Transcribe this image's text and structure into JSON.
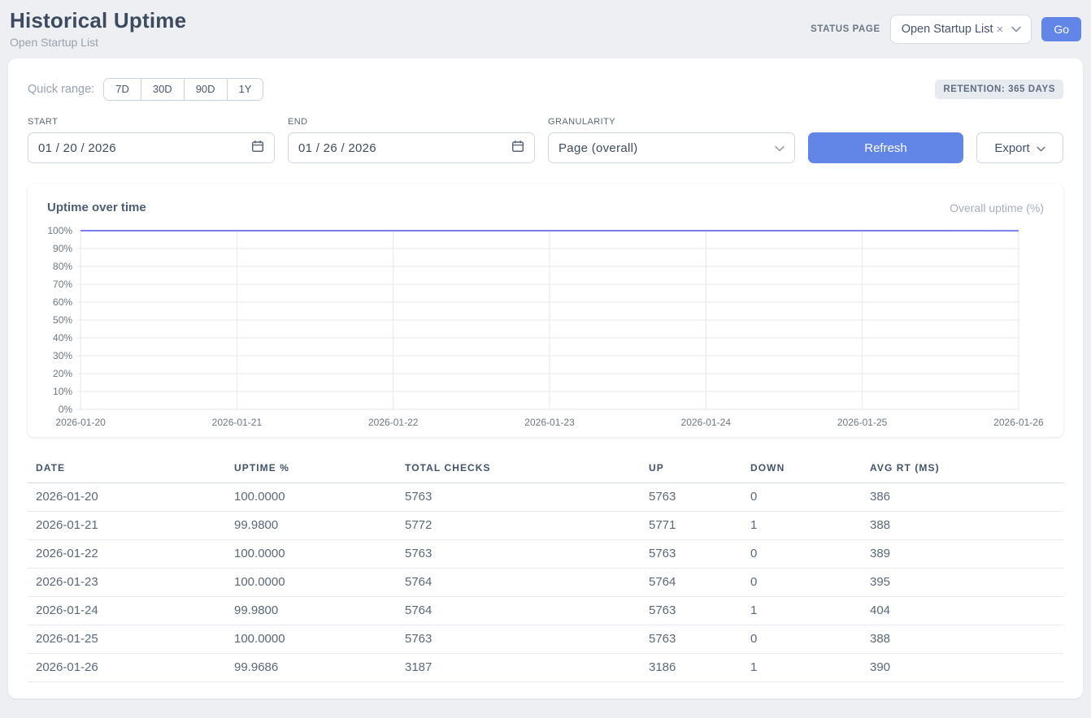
{
  "header": {
    "title": "Historical Uptime",
    "subtitle": "Open Startup List",
    "status_page_label": "STATUS PAGE",
    "status_page_value": "Open Startup List",
    "clear_icon": "×",
    "go_label": "Go"
  },
  "filters": {
    "quick_range_label": "Quick range:",
    "quick_ranges": [
      "7D",
      "30D",
      "90D",
      "1Y"
    ],
    "retention_badge": "RETENTION: 365 DAYS",
    "start_label": "START",
    "start_value": "01 / 20 / 2026",
    "end_label": "END",
    "end_value": "01 / 26 / 2026",
    "granularity_label": "GRANULARITY",
    "granularity_value": "Page (overall)",
    "refresh_label": "Refresh",
    "export_label": "Export"
  },
  "chart_data": {
    "type": "line",
    "title": "Uptime over time",
    "legend_position": "top-right",
    "x": [
      "2026-01-20",
      "2026-01-21",
      "2026-01-22",
      "2026-01-23",
      "2026-01-24",
      "2026-01-25",
      "2026-01-26"
    ],
    "series": [
      {
        "name": "Overall uptime (%)",
        "values": [
          100.0,
          99.98,
          100.0,
          100.0,
          99.98,
          100.0,
          99.9686
        ]
      }
    ],
    "ylim": [
      0,
      100
    ],
    "yticks": [
      0,
      10,
      20,
      30,
      40,
      50,
      60,
      70,
      80,
      90,
      100
    ],
    "ytick_suffix": "%",
    "grid": true,
    "line_color": "#7a7ef0"
  },
  "table": {
    "columns": [
      "DATE",
      "UPTIME %",
      "TOTAL CHECKS",
      "UP",
      "DOWN",
      "AVG RT (MS)"
    ],
    "rows": [
      [
        "2026-01-20",
        "100.0000",
        "5763",
        "5763",
        "0",
        "386"
      ],
      [
        "2026-01-21",
        "99.9800",
        "5772",
        "5771",
        "1",
        "388"
      ],
      [
        "2026-01-22",
        "100.0000",
        "5763",
        "5763",
        "0",
        "389"
      ],
      [
        "2026-01-23",
        "100.0000",
        "5764",
        "5764",
        "0",
        "395"
      ],
      [
        "2026-01-24",
        "99.9800",
        "5764",
        "5763",
        "1",
        "404"
      ],
      [
        "2026-01-25",
        "100.0000",
        "5763",
        "5763",
        "0",
        "388"
      ],
      [
        "2026-01-26",
        "99.9686",
        "3187",
        "3186",
        "1",
        "390"
      ]
    ]
  },
  "colors": {
    "accent": "#6285e8",
    "line": "#7a7ef0",
    "page_bg": "#edeff2",
    "grid": "#e5e8ec",
    "tick_text": "#6e7781"
  }
}
